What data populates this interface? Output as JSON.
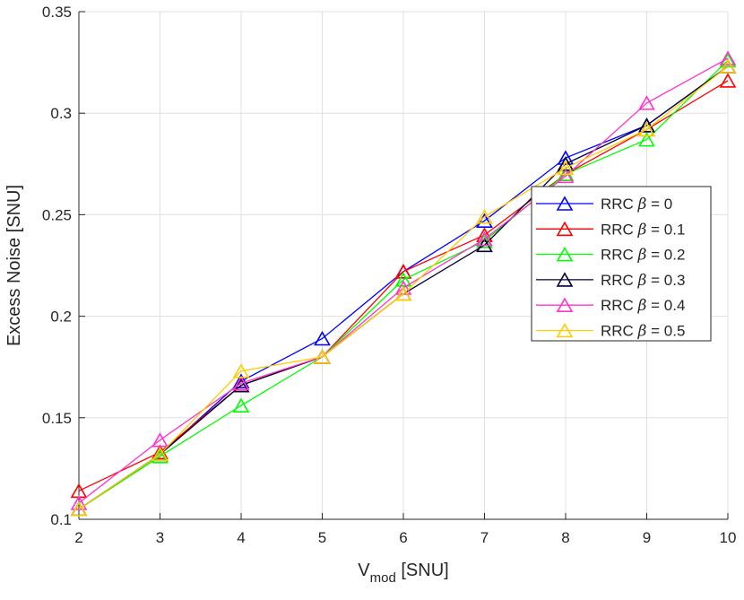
{
  "chart_data": {
    "type": "line",
    "xlabel": "V",
    "xlabel_sub": "mod",
    "xlabel_unit": " [SNU]",
    "ylabel": "Excess Noise [SNU]",
    "xlim": [
      2,
      10
    ],
    "ylim": [
      0.1,
      0.35
    ],
    "xticks": [
      "2",
      "3",
      "4",
      "5",
      "6",
      "7",
      "8",
      "9",
      "10"
    ],
    "yticks": [
      "0.1",
      "0.15",
      "0.2",
      "0.25",
      "0.3",
      "0.35"
    ],
    "grid": true,
    "legend_position": "right",
    "marker": "triangle",
    "x": [
      2,
      3,
      4,
      5,
      6,
      7,
      8,
      9,
      10
    ],
    "series": [
      {
        "name": "RRC",
        "beta": "0",
        "color": "#0000ff",
        "values": [
          0.105,
          0.132,
          0.168,
          0.189,
          0.222,
          0.247,
          0.278,
          0.294,
          0.323
        ]
      },
      {
        "name": "RRC",
        "beta": "0.1",
        "color": "#ff0000",
        "values": [
          0.114,
          0.133,
          0.166,
          0.18,
          0.222,
          0.24,
          0.27,
          0.292,
          0.316
        ]
      },
      {
        "name": "RRC",
        "beta": "0.2",
        "color": "#00ff00",
        "values": [
          0.105,
          0.131,
          0.156,
          0.18,
          0.218,
          0.237,
          0.27,
          0.287,
          0.326
        ]
      },
      {
        "name": "RRC",
        "beta": "0.3",
        "color": "#000033",
        "values": [
          0.105,
          0.132,
          0.166,
          0.18,
          0.211,
          0.235,
          0.275,
          0.294,
          0.323
        ]
      },
      {
        "name": "RRC",
        "beta": "0.4",
        "color": "#ff33cc",
        "values": [
          0.108,
          0.139,
          0.167,
          0.18,
          0.214,
          0.238,
          0.269,
          0.305,
          0.327
        ]
      },
      {
        "name": "RRC",
        "beta": "0.5",
        "color": "#ffcc00",
        "values": [
          0.105,
          0.132,
          0.173,
          0.18,
          0.211,
          0.249,
          0.273,
          0.292,
          0.323
        ]
      }
    ]
  }
}
